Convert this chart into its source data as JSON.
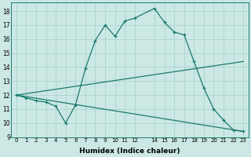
{
  "xlabel": "Humidex (Indice chaleur)",
  "bg_color": "#cce8e4",
  "grid_color": "#aad4ce",
  "line_color": "#1a7a6e",
  "xlim": [
    -0.5,
    23.5
  ],
  "ylim": [
    9,
    18.6
  ],
  "yticks": [
    9,
    10,
    11,
    12,
    13,
    14,
    15,
    16,
    17,
    18
  ],
  "xticks": [
    0,
    1,
    2,
    3,
    4,
    5,
    6,
    7,
    8,
    9,
    10,
    11,
    12,
    14,
    15,
    16,
    17,
    18,
    19,
    20,
    21,
    22,
    23
  ],
  "line1_x": [
    0,
    1,
    2,
    3,
    4,
    5,
    6,
    7,
    8,
    9,
    10,
    11,
    12,
    14,
    15,
    16,
    17,
    18,
    19,
    20,
    21,
    22,
    23
  ],
  "line1_y": [
    12,
    11.8,
    11.6,
    11.5,
    11.2,
    10.0,
    11.3,
    13.9,
    15.9,
    17.0,
    16.2,
    17.3,
    17.5,
    18.2,
    17.2,
    16.5,
    16.3,
    14.4,
    12.5,
    11.0,
    10.2,
    9.5,
    9.4
  ],
  "line2_x": [
    0,
    23
  ],
  "line2_y": [
    12,
    14.4
  ],
  "line3_x": [
    0,
    23
  ],
  "line3_y": [
    12,
    9.4
  ]
}
